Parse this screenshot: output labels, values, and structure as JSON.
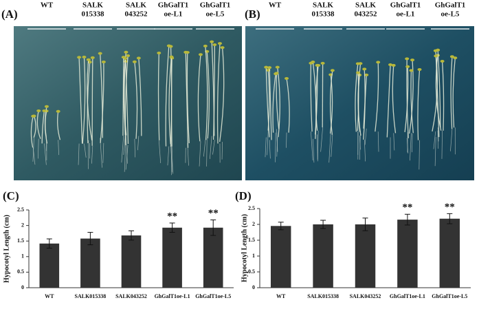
{
  "photos": [
    {
      "label": "(A)",
      "columns": [
        [
          "WT"
        ],
        [
          "SALK",
          "015338"
        ],
        [
          "SALK",
          "043252"
        ],
        [
          "GhGalT1",
          "oe-L1"
        ],
        [
          "GhGalT1",
          "oe-L5"
        ]
      ]
    },
    {
      "label": "(B)",
      "columns": [
        [
          "WT"
        ],
        [
          "SALK",
          "015338"
        ],
        [
          "SALK",
          "043252"
        ],
        [
          "GhGalT1",
          "oe-L1"
        ],
        [
          "GhGalT1",
          "oe-L5"
        ]
      ]
    }
  ],
  "chart_data": [
    {
      "type": "bar",
      "panel_label": "(C)",
      "y_label": "Hypocotyl Length (cm)",
      "categories": [
        "WT",
        "SALK015338",
        "SALK043252",
        "GhGalT1oe-L1",
        "GhGalT1oe-L5"
      ],
      "values": [
        1.42,
        1.58,
        1.68,
        1.93,
        1.93
      ],
      "errors": [
        0.15,
        0.2,
        0.15,
        0.15,
        0.25
      ],
      "value_annotations": [
        null,
        null,
        null,
        "**",
        "**"
      ],
      "color": "#333333",
      "ylim": [
        0,
        2.5
      ],
      "yticks": [
        0,
        0.5,
        1,
        1.5,
        2,
        2.5
      ]
    },
    {
      "type": "bar",
      "panel_label": "(D)",
      "y_label": "Hypocotyl Length (cm)",
      "categories": [
        "WT",
        "SALK015338",
        "SALK043252",
        "GhGalT1oe-L1",
        "GhGalT1oe-L5"
      ],
      "values": [
        1.95,
        2.0,
        2.0,
        2.15,
        2.18
      ],
      "errors": [
        0.12,
        0.13,
        0.2,
        0.17,
        0.16
      ],
      "value_annotations": [
        null,
        null,
        null,
        "**",
        "**"
      ],
      "color": "#333333",
      "ylim": [
        0,
        2.5
      ],
      "yticks": [
        0,
        0.5,
        1,
        1.5,
        2,
        2.5
      ]
    }
  ]
}
